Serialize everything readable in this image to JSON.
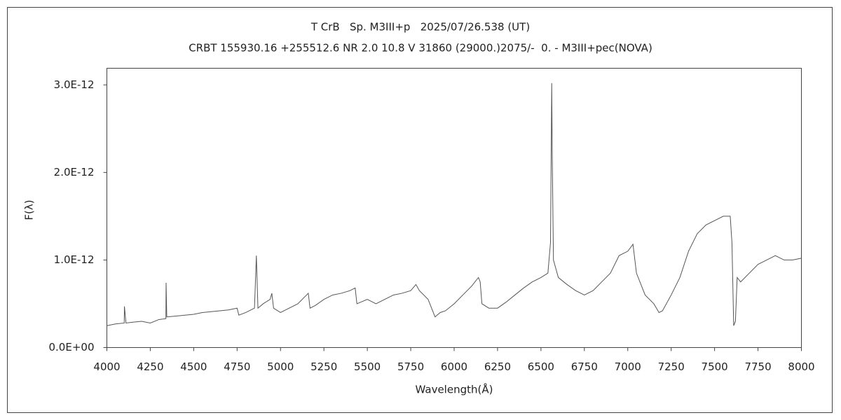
{
  "chart_data": {
    "type": "line",
    "title": "T CrB   Sp. M3III+p   2025/07/26.538 (UT)",
    "subtitle": "CRBT 155930.16 +255512.6 NR 2.0 10.8 V 31860 (29000.)2075/-  0. - M3III+pec(NOVA)",
    "x_label": "Wavelength(Å)",
    "y_label": "F(λ)",
    "color": "#555555",
    "xlim": [
      4000,
      8000
    ],
    "xticks": [
      4000,
      4250,
      4500,
      4750,
      5000,
      5250,
      5500,
      5750,
      6000,
      6250,
      6500,
      6750,
      7000,
      7250,
      7500,
      7750,
      8000
    ],
    "ylim": [
      0,
      3.19e-12
    ],
    "yticks": [
      {
        "value": 0,
        "label": "0.0E+00"
      },
      {
        "value": 1e-12,
        "label": "1.0E-12"
      },
      {
        "value": 2e-12,
        "label": "2.0E-12"
      },
      {
        "value": 3e-12,
        "label": "3.0E-12"
      }
    ],
    "x": [
      4000,
      4050,
      4100,
      4101,
      4110,
      4150,
      4200,
      4250,
      4300,
      4340,
      4341,
      4345,
      4400,
      4450,
      4500,
      4550,
      4600,
      4650,
      4700,
      4750,
      4760,
      4800,
      4850,
      4861,
      4870,
      4900,
      4940,
      4950,
      4960,
      5000,
      5050,
      5100,
      5150,
      5160,
      5170,
      5200,
      5250,
      5300,
      5350,
      5400,
      5430,
      5440,
      5500,
      5550,
      5600,
      5650,
      5700,
      5750,
      5780,
      5800,
      5850,
      5890,
      5920,
      5950,
      6000,
      6050,
      6100,
      6140,
      6150,
      6160,
      6200,
      6250,
      6300,
      6350,
      6400,
      6450,
      6500,
      6540,
      6555,
      6562,
      6565,
      6572,
      6600,
      6650,
      6700,
      6750,
      6800,
      6850,
      6900,
      6950,
      7000,
      7030,
      7050,
      7100,
      7150,
      7180,
      7200,
      7250,
      7300,
      7350,
      7400,
      7450,
      7500,
      7550,
      7590,
      7600,
      7610,
      7620,
      7630,
      7650,
      7700,
      7750,
      7800,
      7850,
      7900,
      7950,
      8000
    ],
    "values": [
      2.5e-13,
      2.7e-13,
      2.8e-13,
      4.7e-13,
      2.8e-13,
      2.9e-13,
      3e-13,
      2.8e-13,
      3.2e-13,
      3.3e-13,
      7.4e-13,
      3.5e-13,
      3.6e-13,
      3.7e-13,
      3.8e-13,
      4e-13,
      4.1e-13,
      4.2e-13,
      4.3e-13,
      4.5e-13,
      3.7e-13,
      4e-13,
      4.5e-13,
      1.05e-12,
      4.5e-13,
      5e-13,
      5.5e-13,
      6.2e-13,
      4.5e-13,
      4e-13,
      4.5e-13,
      5e-13,
      6e-13,
      6.2e-13,
      4.5e-13,
      4.8e-13,
      5.5e-13,
      6e-13,
      6.2e-13,
      6.5e-13,
      6.8e-13,
      5e-13,
      5.5e-13,
      5e-13,
      5.5e-13,
      6e-13,
      6.2e-13,
      6.5e-13,
      7.2e-13,
      6.5e-13,
      5.5e-13,
      3.5e-13,
      4e-13,
      4.2e-13,
      5e-13,
      6e-13,
      7e-13,
      8e-13,
      7.5e-13,
      5e-13,
      4.5e-13,
      4.5e-13,
      5.2e-13,
      6e-13,
      6.8e-13,
      7.5e-13,
      8e-13,
      8.5e-13,
      1.2e-12,
      3.02e-12,
      2.2e-12,
      1e-12,
      8e-13,
      7.2e-13,
      6.5e-13,
      6e-13,
      6.5e-13,
      7.5e-13,
      8.5e-13,
      1.05e-12,
      1.1e-12,
      1.18e-12,
      8.5e-13,
      6e-13,
      5e-13,
      4e-13,
      4.2e-13,
      6e-13,
      8e-13,
      1.1e-12,
      1.3e-12,
      1.4e-12,
      1.45e-12,
      1.5e-12,
      1.5e-12,
      1.2e-12,
      2.5e-13,
      3e-13,
      8e-13,
      7.5e-13,
      8.5e-13,
      9.5e-13,
      1e-12,
      1.05e-12,
      1e-12,
      1e-12,
      1.02e-12
    ]
  }
}
